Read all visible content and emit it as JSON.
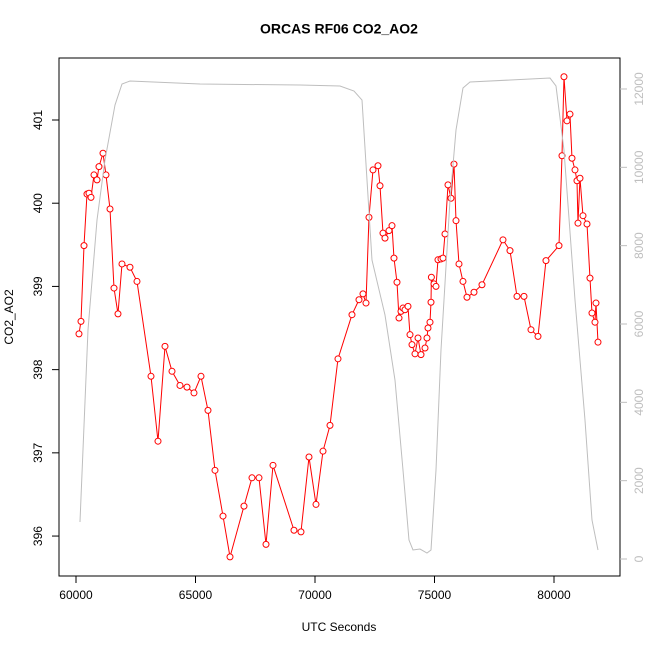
{
  "chart_data": {
    "type": "line",
    "title": "ORCAS RF06 CO2_AO2",
    "xlabel": "UTC Seconds",
    "ylabel": "CO2_AO2",
    "xlim": [
      59289,
      82762
    ],
    "xticks": [
      60000,
      65000,
      70000,
      75000,
      80000
    ],
    "ylim": [
      395.52,
      401.745
    ],
    "yticks": [
      396,
      397,
      398,
      399,
      400,
      401
    ],
    "y2lim": [
      -434,
      12791
    ],
    "y2ticks": [
      0,
      2000,
      4000,
      6000,
      8000,
      10000,
      12000
    ],
    "series": [
      {
        "color": "#ff0000",
        "marker": "circle",
        "x": [
          60125,
          60209,
          60335,
          60460,
          60544,
          60628,
          60753,
          60879,
          60962,
          61130,
          61255,
          61423,
          61590,
          61757,
          61925,
          62259,
          62552,
          63138,
          63431,
          63724,
          64017,
          64351,
          64644,
          64937,
          65230,
          65523,
          65816,
          66151,
          66444,
          67029,
          67364,
          67657,
          67950,
          68243,
          69121,
          69414,
          69749,
          70042,
          70335,
          70628,
          70962,
          71548,
          71841,
          72008,
          72134,
          72259,
          72427,
          72636,
          72720,
          72845,
          72929,
          73096,
          73222,
          73305,
          73431,
          73515,
          73598,
          73682,
          73766,
          73891,
          73975,
          74059,
          74184,
          74310,
          74435,
          74603,
          74686,
          74728,
          74812,
          74854,
          74870,
          74979,
          75063,
          75146,
          75272,
          75356,
          75439,
          75565,
          75690,
          75816,
          75900,
          76025,
          76192,
          76360,
          76653,
          76987,
          77866,
          78159,
          78452,
          78745,
          79038,
          79331,
          79665,
          80209,
          80335,
          80418,
          80544,
          80669,
          80753,
          80879,
          80962,
          81004,
          81088,
          81213,
          81381,
          81506,
          81590,
          81715,
          81757,
          81841
        ],
        "values": [
          398.43,
          398.58,
          399.49,
          400.11,
          400.12,
          400.07,
          400.34,
          400.28,
          400.44,
          400.6,
          400.34,
          399.93,
          398.98,
          398.67,
          399.27,
          399.23,
          399.06,
          397.92,
          397.14,
          398.28,
          397.98,
          397.81,
          397.79,
          397.72,
          397.92,
          397.51,
          396.79,
          396.24,
          395.75,
          396.36,
          396.7,
          396.7,
          395.9,
          396.85,
          396.07,
          396.05,
          396.95,
          396.38,
          397.02,
          397.33,
          398.13,
          398.66,
          398.84,
          398.91,
          398.8,
          399.83,
          400.4,
          400.45,
          400.21,
          399.64,
          399.58,
          399.67,
          399.73,
          399.34,
          399.05,
          398.62,
          398.7,
          398.74,
          398.72,
          398.76,
          398.42,
          398.3,
          398.19,
          398.38,
          398.18,
          398.26,
          398.38,
          398.5,
          398.57,
          398.81,
          399.11,
          399.03,
          399.0,
          399.32,
          399.33,
          399.34,
          399.63,
          400.22,
          400.06,
          400.47,
          399.79,
          399.27,
          399.06,
          398.87,
          398.93,
          399.02,
          399.56,
          399.43,
          398.88,
          398.88,
          398.48,
          398.4,
          399.31,
          399.49,
          400.57,
          401.52,
          400.99,
          401.07,
          400.54,
          400.4,
          400.27,
          399.76,
          400.3,
          399.85,
          399.75,
          399.1,
          398.68,
          398.57,
          398.8,
          398.33
        ]
      },
      {
        "color": "#bebebe",
        "axis": "y2",
        "x": [
          60167,
          60502,
          60879,
          61213,
          61632,
          61925,
          62259,
          65188,
          69372,
          71046,
          71632,
          71967,
          72176,
          72385,
          72929,
          73347,
          73682,
          73933,
          74100,
          74393,
          74686,
          74854,
          75063,
          75272,
          75649,
          75900,
          76192,
          76485,
          79833,
          80084,
          80418,
          80879,
          81297,
          81590,
          81841
        ],
        "values": [
          945,
          5846,
          8654,
          10186,
          11590,
          12127,
          12203,
          12127,
          12101,
          12076,
          11948,
          11718,
          9676,
          7633,
          6229,
          4570,
          2272,
          485,
          230,
          255,
          153,
          230,
          2272,
          5336,
          9165,
          10952,
          12024,
          12178,
          12280,
          12076,
          10441,
          6612,
          3549,
          996,
          230
        ]
      }
    ]
  }
}
